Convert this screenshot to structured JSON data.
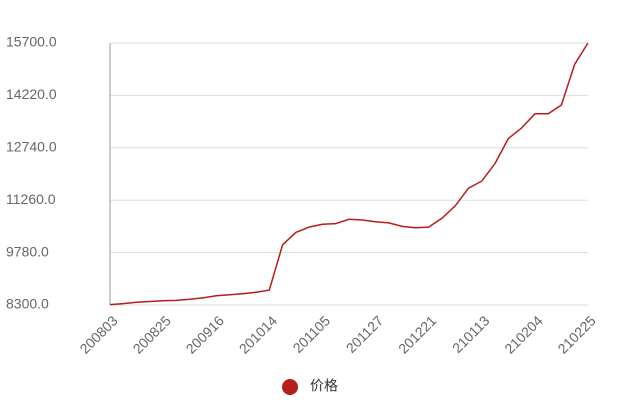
{
  "chart_data": {
    "type": "line",
    "categories": [
      "200803",
      null,
      null,
      null,
      "200825",
      null,
      null,
      null,
      "200916",
      null,
      null,
      null,
      "201014",
      null,
      null,
      null,
      "201105",
      null,
      null,
      null,
      "201127",
      null,
      null,
      null,
      "201221",
      null,
      null,
      null,
      "210113",
      null,
      null,
      null,
      "210204",
      null,
      null,
      null,
      "210225"
    ],
    "series": [
      {
        "name": "价格",
        "color": "#b71c1c",
        "values": [
          8310,
          8340,
          8380,
          8400,
          8420,
          8430,
          8460,
          8500,
          8560,
          8590,
          8620,
          8660,
          8720,
          10000,
          10350,
          10500,
          10580,
          10600,
          10720,
          10700,
          10650,
          10620,
          10520,
          10480,
          10500,
          10750,
          11100,
          11600,
          11800,
          12300,
          13000,
          13300,
          13700,
          13700,
          13950,
          15100,
          15700
        ]
      }
    ],
    "ylim": [
      8300,
      15700
    ],
    "yticks": [
      {
        "value": 8300,
        "label": "8300.0"
      },
      {
        "value": 9780,
        "label": "9780.0"
      },
      {
        "value": 11260,
        "label": "11260.0"
      },
      {
        "value": 12740,
        "label": "12740.0"
      },
      {
        "value": 14220,
        "label": "14220.0"
      },
      {
        "value": 15700,
        "label": "15700.0"
      }
    ],
    "grid": true,
    "legend": "bottom"
  }
}
